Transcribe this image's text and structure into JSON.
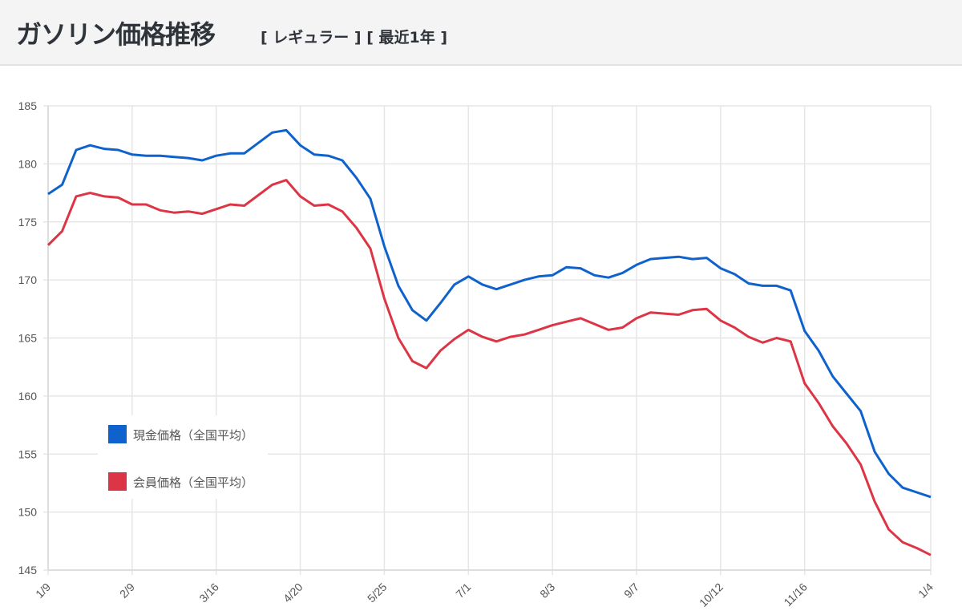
{
  "header": {
    "title": "ガソリン価格推移",
    "subtitle": "[ レギュラー ] [ 最近1年 ]"
  },
  "chart_data": {
    "type": "line",
    "title": "ガソリン価格推移",
    "xlabel": "",
    "ylabel": "",
    "ylim": [
      145,
      185
    ],
    "yticks": [
      145,
      150,
      155,
      160,
      165,
      170,
      175,
      180,
      185
    ],
    "grid": true,
    "legend_position": "bottom-left",
    "categories": [
      "1/9",
      "",
      "",
      "",
      "",
      "",
      "2/9",
      "",
      "",
      "",
      "",
      "",
      "3/16",
      "",
      "",
      "",
      "",
      "",
      "4/20",
      "",
      "",
      "",
      "",
      "",
      "5/25",
      "",
      "",
      "",
      "",
      "",
      "7/1",
      "",
      "",
      "",
      "",
      "",
      "8/3",
      "",
      "",
      "",
      "",
      "",
      "9/7",
      "",
      "",
      "",
      "",
      "",
      "10/12",
      "",
      "",
      "",
      "",
      "",
      "11/16",
      "",
      "",
      "",
      "",
      "",
      "",
      "",
      "",
      "1/4"
    ],
    "series": [
      {
        "name": "現金価格（全国平均）",
        "color": "#0f62cc",
        "values": [
          177.4,
          178.2,
          181.2,
          181.6,
          181.3,
          181.2,
          180.8,
          180.7,
          180.7,
          180.6,
          180.5,
          180.3,
          180.7,
          180.9,
          180.9,
          181.8,
          182.7,
          182.9,
          181.6,
          180.8,
          180.7,
          180.3,
          178.8,
          177.0,
          172.9,
          169.5,
          167.4,
          166.5,
          168.0,
          169.6,
          170.3,
          169.6,
          169.2,
          169.6,
          170.0,
          170.3,
          170.4,
          171.1,
          171.0,
          170.4,
          170.2,
          170.6,
          171.3,
          171.8,
          171.9,
          172.0,
          171.8,
          171.9,
          171.0,
          170.5,
          169.7,
          169.5,
          169.5,
          169.1,
          165.6,
          163.9,
          161.7,
          160.2,
          158.7,
          155.2,
          153.3,
          152.1,
          151.7,
          151.3
        ]
      },
      {
        "name": "会員価格（全国平均）",
        "color": "#dc3545",
        "values": [
          173.0,
          174.2,
          177.2,
          177.5,
          177.2,
          177.1,
          176.5,
          176.5,
          176.0,
          175.8,
          175.9,
          175.7,
          176.1,
          176.5,
          176.4,
          177.3,
          178.2,
          178.6,
          177.2,
          176.4,
          176.5,
          175.9,
          174.5,
          172.7,
          168.4,
          165.0,
          163.0,
          162.4,
          163.9,
          164.9,
          165.7,
          165.1,
          164.7,
          165.1,
          165.3,
          165.7,
          166.1,
          166.4,
          166.7,
          166.2,
          165.7,
          165.9,
          166.7,
          167.2,
          167.1,
          167.0,
          167.4,
          167.5,
          166.5,
          165.9,
          165.1,
          164.6,
          165.0,
          164.7,
          161.1,
          159.4,
          157.4,
          155.9,
          154.1,
          150.9,
          148.5,
          147.4,
          146.9,
          146.3
        ]
      }
    ]
  }
}
